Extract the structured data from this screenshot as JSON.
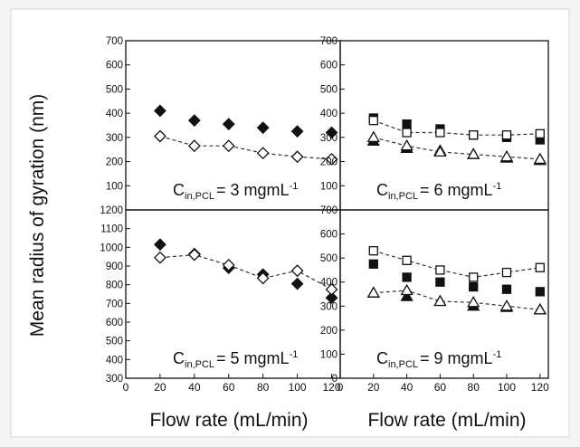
{
  "figure": {
    "ylabel": "Mean radius of gyration (nm)",
    "xlabels": [
      "Flow rate (mL/min)",
      "Flow rate (mL/min)"
    ]
  },
  "chart_data": [
    {
      "type": "scatter",
      "position": "top-left",
      "annotation": {
        "base": "C",
        "sub": "in,PCL",
        "rest": "= 3 mgmL",
        "sup": "-1"
      },
      "xlim": [
        0,
        125
      ],
      "ylim": [
        0,
        700
      ],
      "yticks": [
        100,
        200,
        300,
        400,
        500,
        600,
        700
      ],
      "xticks": [],
      "series": [
        {
          "marker": "diamond",
          "filled": true,
          "connected": false,
          "x": [
            20,
            40,
            60,
            80,
            100,
            120
          ],
          "y": [
            410,
            370,
            355,
            340,
            325,
            320
          ]
        },
        {
          "marker": "diamond",
          "filled": false,
          "connected": true,
          "x": [
            20,
            40,
            60,
            80,
            100,
            120
          ],
          "y": [
            305,
            265,
            265,
            235,
            220,
            210
          ]
        }
      ]
    },
    {
      "type": "scatter",
      "position": "top-right",
      "annotation": {
        "base": "C",
        "sub": "in,PCL",
        "rest": "= 6 mgmL",
        "sup": "-1"
      },
      "xlim": [
        0,
        125
      ],
      "ylim": [
        0,
        700
      ],
      "yticks": [
        100,
        200,
        300,
        400,
        500,
        600,
        700
      ],
      "xticks": [],
      "series": [
        {
          "marker": "square",
          "filled": true,
          "connected": false,
          "x": [
            20,
            40,
            60,
            80,
            100,
            120
          ],
          "y": [
            380,
            355,
            335,
            310,
            300,
            290
          ]
        },
        {
          "marker": "square",
          "filled": false,
          "connected": true,
          "x": [
            20,
            40,
            60,
            80,
            100,
            120
          ],
          "y": [
            370,
            320,
            320,
            310,
            310,
            315
          ]
        },
        {
          "marker": "triangle",
          "filled": true,
          "connected": false,
          "x": [
            20,
            40,
            60,
            80,
            100,
            120
          ],
          "y": [
            285,
            255,
            245,
            230,
            215,
            205
          ]
        },
        {
          "marker": "triangle",
          "filled": false,
          "connected": true,
          "x": [
            20,
            40,
            60,
            80,
            100,
            120
          ],
          "y": [
            300,
            265,
            240,
            230,
            220,
            210
          ]
        }
      ]
    },
    {
      "type": "scatter",
      "position": "bottom-left",
      "annotation": {
        "base": "C",
        "sub": "in,PCL",
        "rest": "= 5 mgmL",
        "sup": "-1"
      },
      "xlim": [
        0,
        125
      ],
      "ylim": [
        300,
        1200
      ],
      "yticks": [
        300,
        400,
        500,
        600,
        700,
        800,
        900,
        1000,
        1100,
        1200
      ],
      "xticks": [
        0,
        20,
        40,
        60,
        80,
        100,
        120
      ],
      "series": [
        {
          "marker": "diamond",
          "filled": true,
          "connected": false,
          "x": [
            20,
            40,
            60,
            80,
            100,
            120
          ],
          "y": [
            1015,
            965,
            890,
            855,
            805,
            730
          ]
        },
        {
          "marker": "diamond",
          "filled": false,
          "connected": true,
          "x": [
            20,
            40,
            60,
            80,
            100,
            120
          ],
          "y": [
            945,
            960,
            905,
            835,
            875,
            775
          ]
        }
      ]
    },
    {
      "type": "scatter",
      "position": "bottom-right",
      "annotation": {
        "base": "C",
        "sub": "in,PCL",
        "rest": "= 9 mgmL",
        "sup": "-1"
      },
      "xlim": [
        0,
        125
      ],
      "ylim": [
        0,
        700
      ],
      "yticks": [
        0,
        100,
        200,
        300,
        400,
        500,
        600,
        700
      ],
      "xticks": [
        0,
        20,
        40,
        60,
        80,
        100,
        120
      ],
      "series": [
        {
          "marker": "square",
          "filled": true,
          "connected": false,
          "x": [
            20,
            40,
            60,
            80,
            100,
            120
          ],
          "y": [
            475,
            420,
            400,
            380,
            370,
            360
          ]
        },
        {
          "marker": "square",
          "filled": false,
          "connected": true,
          "x": [
            20,
            40,
            60,
            80,
            100,
            120
          ],
          "y": [
            530,
            490,
            450,
            420,
            440,
            460
          ]
        },
        {
          "marker": "triangle",
          "filled": true,
          "connected": false,
          "x": [
            20,
            40,
            60,
            80,
            100,
            120
          ],
          "y": [
            355,
            340,
            320,
            300,
            295,
            285
          ]
        },
        {
          "marker": "triangle",
          "filled": false,
          "connected": true,
          "x": [
            20,
            40,
            60,
            80,
            100,
            120
          ],
          "y": [
            355,
            365,
            320,
            315,
            300,
            285
          ]
        }
      ]
    }
  ]
}
